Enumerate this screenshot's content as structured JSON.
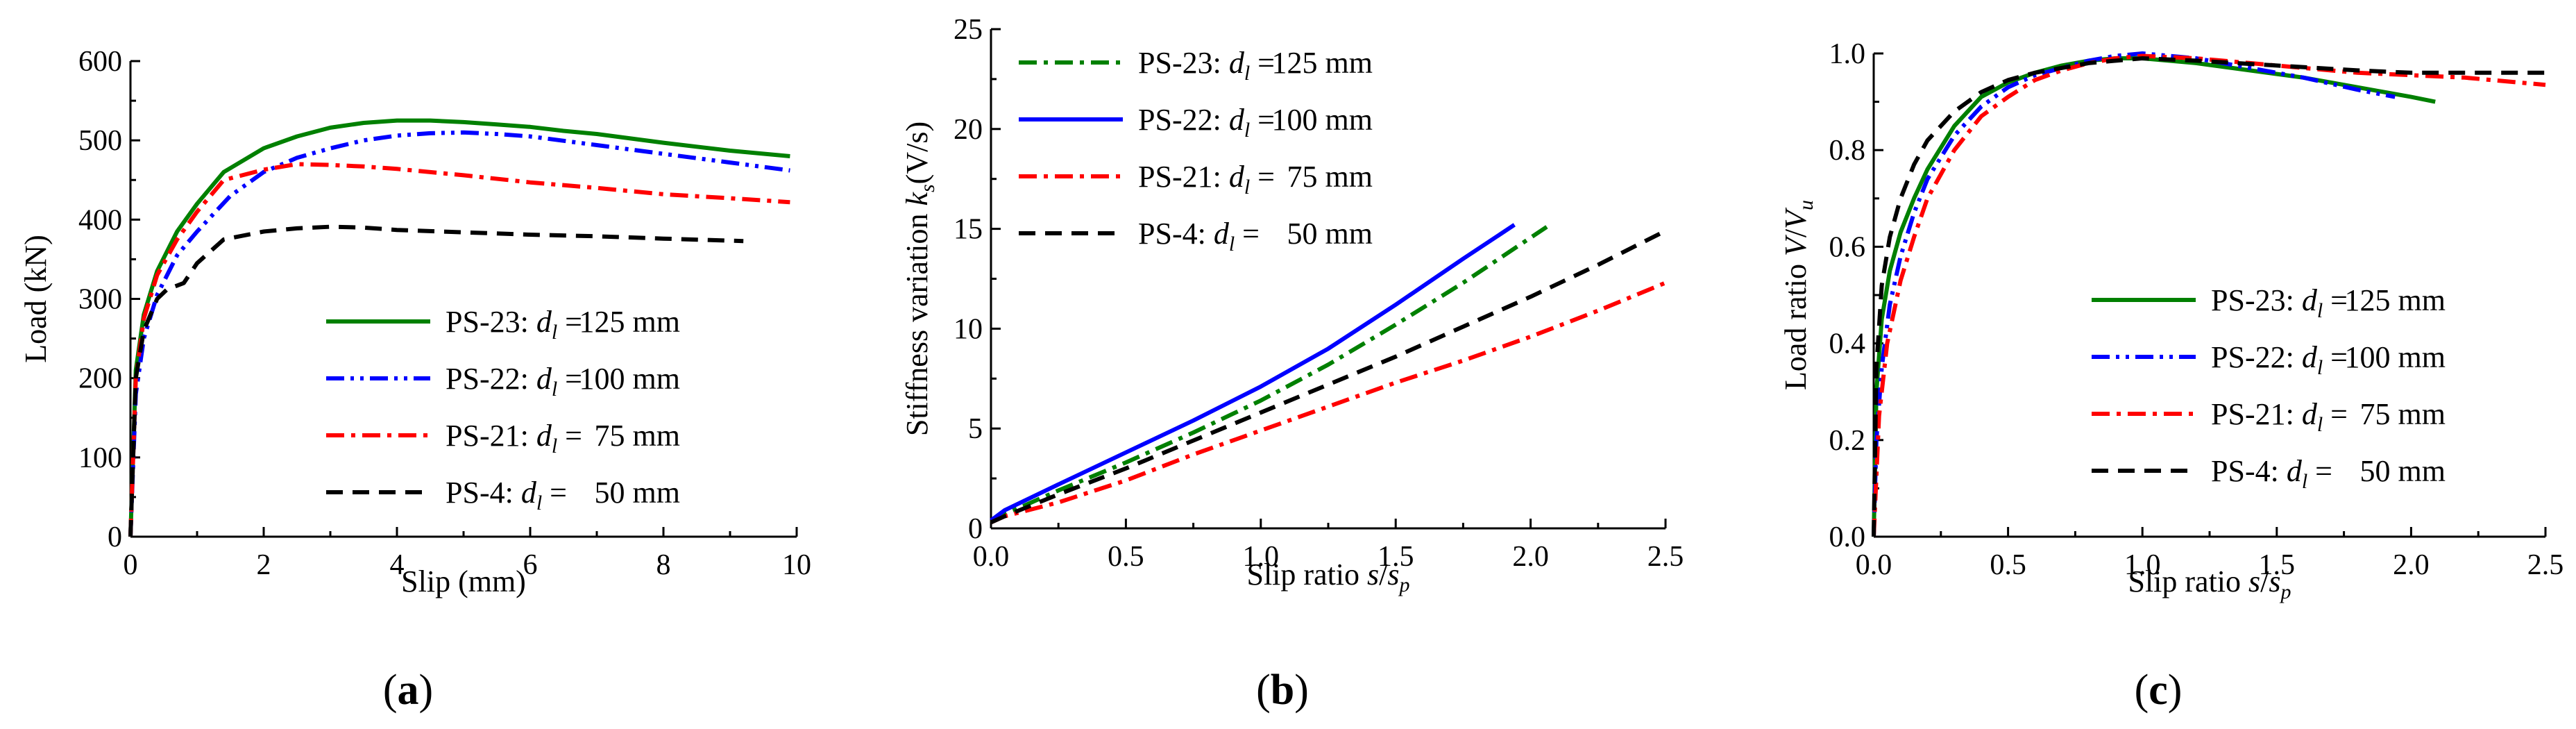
{
  "colors": {
    "green": "#008000",
    "blue": "#0000ff",
    "red": "#ff0000",
    "black": "#000000"
  },
  "chart_data": [
    {
      "type": "line",
      "panel_label_parts": [
        "(",
        "a",
        ")"
      ],
      "xlabel": "Slip (mm)",
      "ylabel": "Load (kN)",
      "xlim": [
        0,
        10
      ],
      "ylim": [
        0,
        600
      ],
      "xticks": [
        "0",
        "2",
        "4",
        "6",
        "8",
        "10"
      ],
      "yticks": [
        "0",
        "100",
        "200",
        "300",
        "400",
        "500",
        "600"
      ],
      "legend_position": "lower-right",
      "series": [
        {
          "name": "PS-23",
          "d": "125 mm",
          "color": "green",
          "dash": "solid",
          "x": [
            0,
            0.08,
            0.2,
            0.4,
            0.7,
            1.0,
            1.4,
            2.0,
            2.5,
            3.0,
            3.5,
            4.0,
            4.5,
            5.0,
            5.5,
            6.0,
            6.5,
            7.0,
            8.0,
            9.0,
            9.9
          ],
          "y": [
            0,
            210,
            280,
            335,
            385,
            420,
            460,
            490,
            505,
            516,
            522,
            525,
            525,
            523,
            520,
            517,
            512,
            508,
            497,
            487,
            480
          ]
        },
        {
          "name": "PS-22",
          "d": "100 mm",
          "color": "blue",
          "dash": "dashdotdot",
          "x": [
            0,
            0.08,
            0.2,
            0.4,
            0.7,
            1.0,
            1.5,
            2.0,
            2.5,
            3.0,
            3.5,
            4.0,
            4.5,
            5.0,
            5.5,
            6.0,
            7.0,
            8.0,
            9.0,
            9.9
          ],
          "y": [
            0,
            180,
            250,
            305,
            355,
            385,
            430,
            460,
            478,
            490,
            500,
            506,
            509,
            510,
            508,
            505,
            494,
            483,
            472,
            462
          ]
        },
        {
          "name": "PS-21",
          "d": "75 mm",
          "color": "red",
          "dash": "dashdot",
          "x": [
            0,
            0.08,
            0.2,
            0.4,
            0.7,
            1.0,
            1.4,
            2.0,
            2.5,
            3.0,
            3.5,
            4.0,
            5.0,
            6.0,
            7.0,
            8.0,
            9.0,
            9.9
          ],
          "y": [
            0,
            200,
            275,
            330,
            375,
            410,
            450,
            463,
            470,
            469,
            467,
            464,
            456,
            447,
            440,
            432,
            427,
            422
          ]
        },
        {
          "name": "PS-4",
          "d": "50 mm",
          "color": "black",
          "dash": "dash",
          "x": [
            0,
            0.08,
            0.2,
            0.4,
            0.55,
            0.8,
            1.0,
            1.4,
            2.0,
            2.5,
            3.0,
            3.5,
            4.0,
            5.0,
            6.0,
            7.0,
            8.0,
            9.2
          ],
          "y": [
            0,
            200,
            260,
            300,
            312,
            320,
            345,
            375,
            385,
            389,
            391,
            390,
            387,
            384,
            381,
            379,
            376,
            373
          ]
        }
      ]
    },
    {
      "type": "line",
      "panel_label_parts": [
        "(",
        "b",
        ")"
      ],
      "xlabel_main": "Slip ratio ",
      "xlabel_var": "s",
      "xlabel_slash": "/",
      "xlabel_var2": "s",
      "xlabel_sub": "p",
      "ylabel_main": "Stiffness variation ",
      "ylabel_var": "k",
      "ylabel_sub": "s",
      "ylabel_paren": "(V/s)",
      "xlim": [
        0,
        2.5
      ],
      "ylim": [
        0,
        25
      ],
      "xticks": [
        "0.0",
        "0.5",
        "1.0",
        "1.5",
        "2.0",
        "2.5"
      ],
      "yticks": [
        "0",
        "5",
        "10",
        "15",
        "20",
        "25"
      ],
      "legend_position": "upper-left",
      "series": [
        {
          "name": "PS-23",
          "d": "125 mm",
          "color": "green",
          "dash": "dashdot",
          "x": [
            0,
            0.05,
            0.25,
            0.5,
            0.75,
            1.0,
            1.25,
            1.5,
            1.75,
            2.06
          ],
          "y": [
            0.3,
            0.7,
            1.9,
            3.3,
            4.8,
            6.4,
            8.2,
            10.2,
            12.3,
            15.1
          ]
        },
        {
          "name": "PS-22",
          "d": "100 mm",
          "color": "blue",
          "dash": "solid",
          "x": [
            0,
            0.05,
            0.25,
            0.5,
            0.75,
            1.0,
            1.25,
            1.5,
            1.75,
            1.94
          ],
          "y": [
            0.4,
            0.9,
            2.2,
            3.8,
            5.4,
            7.1,
            9.0,
            11.2,
            13.5,
            15.2
          ]
        },
        {
          "name": "PS-21",
          "d": "75 mm",
          "color": "red",
          "dash": "dashdot",
          "x": [
            0,
            0.05,
            0.25,
            0.5,
            0.75,
            1.0,
            1.25,
            1.5,
            1.75,
            2.0,
            2.25,
            2.5
          ],
          "y": [
            0.3,
            0.6,
            1.3,
            2.4,
            3.7,
            4.9,
            6.1,
            7.3,
            8.4,
            9.6,
            10.9,
            12.3
          ]
        },
        {
          "name": "PS-4",
          "d": "50 mm",
          "color": "black",
          "dash": "dash",
          "x": [
            0,
            0.05,
            0.25,
            0.5,
            0.75,
            1.0,
            1.25,
            1.5,
            1.75,
            2.0,
            2.25,
            2.5
          ],
          "y": [
            0.3,
            0.6,
            1.7,
            3.0,
            4.4,
            5.8,
            7.2,
            8.6,
            10.1,
            11.6,
            13.2,
            14.9
          ]
        }
      ]
    },
    {
      "type": "line",
      "panel_label_parts": [
        "(",
        "c",
        ")"
      ],
      "xlabel_main": "Slip ratio ",
      "xlabel_var": "s",
      "xlabel_slash": "/",
      "xlabel_var2": "s",
      "xlabel_sub": "p",
      "ylabel_main": "Load ratio ",
      "ylabel_var": "V",
      "ylabel_slash": "/",
      "ylabel_var2": "V",
      "ylabel_sub": "u",
      "xlim": [
        0,
        2.5
      ],
      "ylim": [
        0,
        1.0
      ],
      "xticks": [
        "0.0",
        "0.5",
        "1.0",
        "1.5",
        "2.0",
        "2.5"
      ],
      "yticks": [
        "0.0",
        "0.2",
        "0.4",
        "0.6",
        "0.8",
        "1.0"
      ],
      "legend_position": "lower-right",
      "series": [
        {
          "name": "PS-23",
          "d": "125 mm",
          "color": "green",
          "dash": "solid",
          "x": [
            0,
            0.01,
            0.03,
            0.06,
            0.1,
            0.15,
            0.2,
            0.3,
            0.4,
            0.5,
            0.6,
            0.7,
            0.8,
            0.9,
            1.0,
            1.2,
            1.4,
            1.6,
            1.8,
            2.0,
            2.09
          ],
          "y": [
            0,
            0.3,
            0.45,
            0.55,
            0.63,
            0.7,
            0.76,
            0.85,
            0.91,
            0.94,
            0.96,
            0.975,
            0.985,
            0.99,
            0.99,
            0.98,
            0.965,
            0.95,
            0.93,
            0.91,
            0.9
          ]
        },
        {
          "name": "PS-22",
          "d": "100 mm",
          "color": "blue",
          "dash": "dashdotdot",
          "x": [
            0,
            0.01,
            0.03,
            0.06,
            0.1,
            0.15,
            0.2,
            0.3,
            0.4,
            0.5,
            0.6,
            0.7,
            0.8,
            0.9,
            1.0,
            1.2,
            1.4,
            1.6,
            1.8,
            1.94
          ],
          "y": [
            0,
            0.2,
            0.35,
            0.48,
            0.58,
            0.67,
            0.74,
            0.83,
            0.89,
            0.93,
            0.955,
            0.97,
            0.985,
            0.995,
            1.0,
            0.99,
            0.97,
            0.95,
            0.925,
            0.91
          ]
        },
        {
          "name": "PS-21",
          "d": "75 mm",
          "color": "red",
          "dash": "dashdot",
          "x": [
            0,
            0.02,
            0.05,
            0.1,
            0.15,
            0.2,
            0.3,
            0.4,
            0.5,
            0.6,
            0.7,
            0.8,
            0.9,
            1.0,
            1.2,
            1.4,
            1.6,
            1.8,
            2.0,
            2.2,
            2.5
          ],
          "y": [
            0,
            0.25,
            0.4,
            0.53,
            0.62,
            0.7,
            0.8,
            0.87,
            0.91,
            0.945,
            0.965,
            0.98,
            0.99,
            0.995,
            0.99,
            0.98,
            0.97,
            0.96,
            0.955,
            0.95,
            0.935
          ]
        },
        {
          "name": "PS-4",
          "d": "50 mm",
          "color": "black",
          "dash": "dash",
          "x": [
            0,
            0.01,
            0.03,
            0.06,
            0.1,
            0.15,
            0.2,
            0.3,
            0.4,
            0.5,
            0.6,
            0.8,
            1.0,
            1.2,
            1.5,
            1.8,
            2.0,
            2.5
          ],
          "y": [
            0,
            0.35,
            0.52,
            0.62,
            0.7,
            0.77,
            0.82,
            0.88,
            0.92,
            0.945,
            0.96,
            0.98,
            0.99,
            0.985,
            0.975,
            0.965,
            0.96,
            0.96
          ]
        }
      ]
    }
  ]
}
